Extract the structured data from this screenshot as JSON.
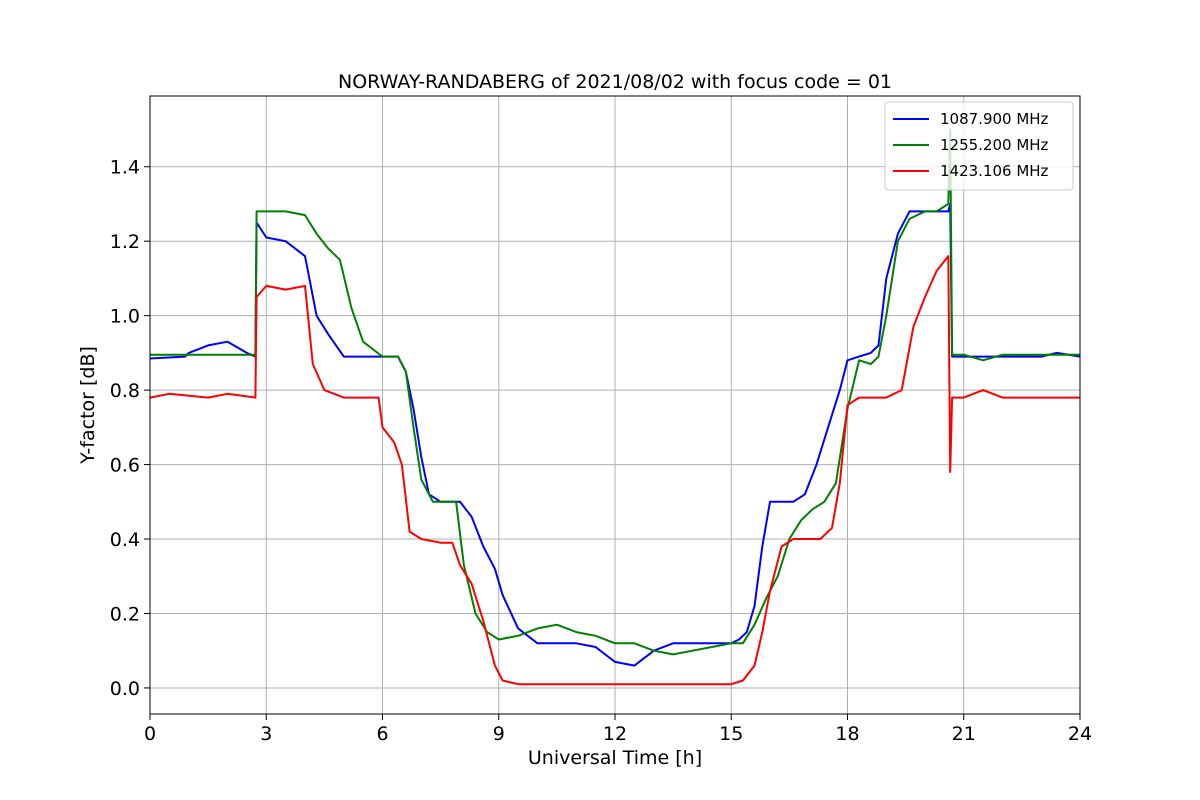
{
  "chart_data": {
    "type": "line",
    "title": "NORWAY-RANDABERG of 2021/08/02 with focus code = 01",
    "xlabel": "Universal Time [h]",
    "ylabel": "Y-factor [dB]",
    "xlim": [
      0,
      24
    ],
    "ylim": [
      -0.07,
      1.59
    ],
    "xticks": [
      0,
      3,
      6,
      9,
      12,
      15,
      18,
      21,
      24
    ],
    "xtick_labels": [
      "0",
      "3",
      "6",
      "9",
      "12",
      "15",
      "18",
      "21",
      "24"
    ],
    "yticks": [
      0.0,
      0.2,
      0.4,
      0.6,
      0.8,
      1.0,
      1.2,
      1.4
    ],
    "ytick_labels": [
      "0.0",
      "0.2",
      "0.4",
      "0.6",
      "0.8",
      "1.0",
      "1.2",
      "1.4"
    ],
    "grid": true,
    "legend_position": "top-right",
    "series": [
      {
        "name": "1087.900 MHz",
        "color": "#0000ff",
        "x": [
          0,
          0.9,
          1.0,
          1.5,
          2.0,
          2.5,
          2.72,
          2.75,
          3.0,
          3.5,
          4.0,
          4.3,
          4.6,
          5.0,
          5.5,
          6.0,
          6.4,
          6.6,
          6.8,
          7.0,
          7.2,
          7.5,
          7.8,
          8.0,
          8.3,
          8.6,
          8.9,
          9.1,
          9.5,
          10.0,
          10.5,
          11.0,
          11.5,
          12.0,
          12.5,
          13.0,
          13.5,
          14.0,
          14.5,
          15.0,
          15.2,
          15.4,
          15.6,
          15.8,
          16.0,
          16.3,
          16.6,
          16.9,
          17.2,
          17.5,
          17.8,
          18.0,
          18.3,
          18.6,
          18.8,
          19.0,
          19.3,
          19.6,
          20.0,
          20.3,
          20.6,
          20.65,
          20.7,
          21.0,
          22.0,
          23.0,
          23.4,
          24.0
        ],
        "y": [
          0.885,
          0.89,
          0.9,
          0.92,
          0.93,
          0.9,
          0.89,
          1.25,
          1.21,
          1.2,
          1.16,
          1.0,
          0.95,
          0.89,
          0.89,
          0.89,
          0.89,
          0.85,
          0.75,
          0.62,
          0.52,
          0.5,
          0.5,
          0.5,
          0.46,
          0.38,
          0.32,
          0.25,
          0.16,
          0.12,
          0.12,
          0.12,
          0.11,
          0.07,
          0.06,
          0.1,
          0.12,
          0.12,
          0.12,
          0.12,
          0.13,
          0.15,
          0.22,
          0.38,
          0.5,
          0.5,
          0.5,
          0.52,
          0.6,
          0.7,
          0.8,
          0.88,
          0.89,
          0.9,
          0.92,
          1.1,
          1.22,
          1.28,
          1.28,
          1.28,
          1.28,
          1.3,
          0.89,
          0.89,
          0.89,
          0.89,
          0.9,
          0.89
        ]
      },
      {
        "name": "1255.200 MHz",
        "color": "#008000",
        "x": [
          0,
          2.72,
          2.75,
          3.0,
          3.5,
          4.0,
          4.3,
          4.6,
          4.9,
          5.2,
          5.5,
          6.0,
          6.4,
          6.6,
          6.8,
          7.0,
          7.3,
          7.6,
          7.9,
          8.1,
          8.4,
          8.7,
          9.0,
          9.5,
          10.0,
          10.5,
          11.0,
          11.5,
          12.0,
          12.5,
          13.0,
          13.5,
          14.0,
          14.5,
          15.0,
          15.3,
          15.6,
          15.9,
          16.2,
          16.5,
          16.8,
          17.1,
          17.4,
          17.7,
          18.0,
          18.3,
          18.6,
          18.8,
          19.0,
          19.3,
          19.6,
          20.0,
          20.3,
          20.6,
          20.65,
          20.7,
          21.0,
          21.5,
          22.0,
          23.0,
          24.0
        ],
        "y": [
          0.895,
          0.895,
          1.28,
          1.28,
          1.28,
          1.27,
          1.22,
          1.18,
          1.15,
          1.02,
          0.93,
          0.89,
          0.89,
          0.85,
          0.7,
          0.56,
          0.5,
          0.5,
          0.5,
          0.33,
          0.2,
          0.15,
          0.13,
          0.14,
          0.16,
          0.17,
          0.15,
          0.14,
          0.12,
          0.12,
          0.1,
          0.09,
          0.1,
          0.11,
          0.12,
          0.12,
          0.17,
          0.24,
          0.3,
          0.4,
          0.45,
          0.48,
          0.5,
          0.55,
          0.75,
          0.88,
          0.87,
          0.89,
          1.0,
          1.2,
          1.26,
          1.28,
          1.28,
          1.3,
          1.5,
          0.895,
          0.895,
          0.88,
          0.895,
          0.895,
          0.895
        ]
      },
      {
        "name": "1423.106 MHz",
        "color": "#ff0000",
        "x": [
          0,
          0.5,
          1.5,
          2.0,
          2.72,
          2.75,
          3.0,
          3.5,
          4.0,
          4.2,
          4.5,
          5.0,
          5.5,
          5.9,
          6.0,
          6.3,
          6.5,
          6.7,
          7.0,
          7.5,
          7.8,
          8.0,
          8.3,
          8.6,
          8.9,
          9.1,
          9.5,
          10.0,
          11.0,
          12.0,
          13.0,
          14.0,
          15.0,
          15.3,
          15.6,
          15.8,
          16.0,
          16.3,
          16.6,
          17.0,
          17.3,
          17.6,
          17.8,
          18.0,
          18.3,
          18.6,
          19.0,
          19.4,
          19.7,
          20.0,
          20.3,
          20.6,
          20.65,
          20.7,
          21.0,
          21.5,
          22.0,
          23.0,
          24.0
        ],
        "y": [
          0.78,
          0.79,
          0.78,
          0.79,
          0.78,
          1.05,
          1.08,
          1.07,
          1.08,
          0.87,
          0.8,
          0.78,
          0.78,
          0.78,
          0.7,
          0.66,
          0.6,
          0.42,
          0.4,
          0.39,
          0.39,
          0.33,
          0.28,
          0.18,
          0.06,
          0.02,
          0.01,
          0.01,
          0.01,
          0.01,
          0.01,
          0.01,
          0.01,
          0.02,
          0.06,
          0.15,
          0.26,
          0.38,
          0.4,
          0.4,
          0.4,
          0.43,
          0.55,
          0.76,
          0.78,
          0.78,
          0.78,
          0.8,
          0.97,
          1.05,
          1.12,
          1.16,
          0.58,
          0.78,
          0.78,
          0.8,
          0.78,
          0.78,
          0.78
        ]
      }
    ]
  }
}
